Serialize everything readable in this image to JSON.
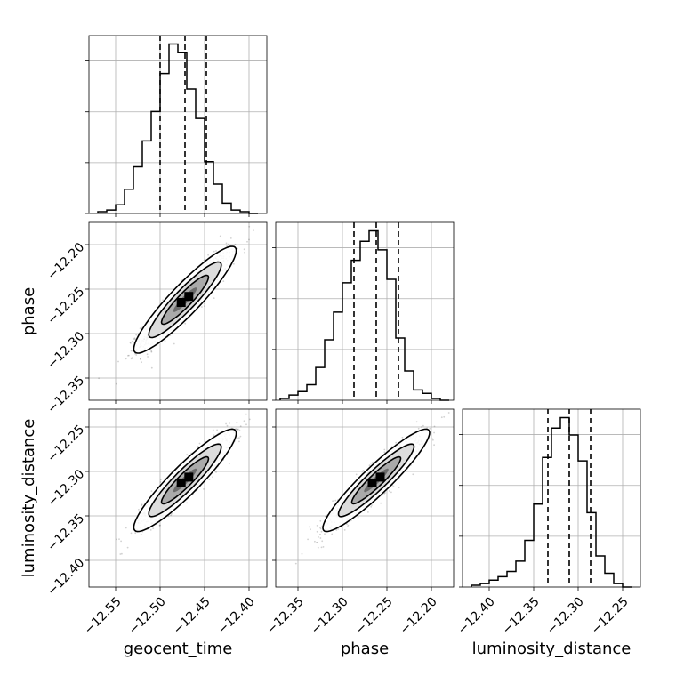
{
  "chart_data": {
    "type": "corner",
    "parameters": [
      "geocent_time",
      "phase",
      "luminosity_distance"
    ],
    "axis_labels": {
      "geocent_time": "geocent_time",
      "phase": "phase",
      "luminosity_distance": "luminosity_distance"
    },
    "ticks": {
      "geocent_time": {
        "values": [
          -12.55,
          -12.5,
          -12.45,
          -12.4
        ],
        "labels": [
          "−12.55",
          "−12.50",
          "−12.45",
          "−12.40"
        ],
        "range": [
          -12.58,
          -12.38
        ]
      },
      "phase": {
        "values": [
          -12.35,
          -12.3,
          -12.25,
          -12.2
        ],
        "labels": [
          "−12.35",
          "−12.30",
          "−12.25",
          "−12.20"
        ],
        "range": [
          -12.375,
          -12.175
        ]
      },
      "luminosity_distance": {
        "values": [
          -12.4,
          -12.35,
          -12.3,
          -12.25
        ],
        "labels": [
          "−12.40",
          "−12.35",
          "−12.30",
          "−12.25"
        ],
        "range": [
          -12.43,
          -12.23
        ]
      }
    },
    "histograms": {
      "geocent_time": {
        "bin_edges": [
          -12.57,
          -12.56,
          -12.55,
          -12.54,
          -12.53,
          -12.52,
          -12.51,
          -12.5,
          -12.49,
          -12.48,
          -12.47,
          -12.46,
          -12.45,
          -12.44,
          -12.43,
          -12.42,
          -12.41,
          -12.4,
          -12.39
        ],
        "counts": [
          0.01,
          0.02,
          0.05,
          0.14,
          0.27,
          0.42,
          0.59,
          0.81,
          0.98,
          0.93,
          0.72,
          0.55,
          0.3,
          0.17,
          0.06,
          0.02,
          0.01,
          0.0
        ],
        "quantiles": [
          -12.5,
          -12.472,
          -12.448
        ]
      },
      "phase": {
        "bin_edges": [
          -12.37,
          -12.36,
          -12.35,
          -12.34,
          -12.33,
          -12.32,
          -12.31,
          -12.3,
          -12.29,
          -12.28,
          -12.27,
          -12.26,
          -12.25,
          -12.24,
          -12.23,
          -12.22,
          -12.21,
          -12.2,
          -12.19,
          -12.18
        ],
        "counts": [
          0.01,
          0.03,
          0.05,
          0.09,
          0.19,
          0.35,
          0.51,
          0.68,
          0.81,
          0.92,
          0.98,
          0.87,
          0.7,
          0.36,
          0.17,
          0.06,
          0.04,
          0.01,
          0.0
        ],
        "quantiles": [
          -12.287,
          -12.262,
          -12.237
        ]
      },
      "luminosity_distance": {
        "bin_edges": [
          -12.42,
          -12.41,
          -12.4,
          -12.39,
          -12.38,
          -12.37,
          -12.36,
          -12.35,
          -12.34,
          -12.33,
          -12.32,
          -12.31,
          -12.3,
          -12.29,
          -12.28,
          -12.27,
          -12.26,
          -12.25,
          -12.24
        ],
        "counts": [
          0.01,
          0.02,
          0.04,
          0.06,
          0.09,
          0.15,
          0.27,
          0.48,
          0.75,
          0.92,
          0.98,
          0.88,
          0.73,
          0.43,
          0.18,
          0.08,
          0.02,
          0.0
        ],
        "quantiles": [
          -12.334,
          -12.31,
          -12.286
        ]
      }
    },
    "pairs": [
      {
        "x": "geocent_time",
        "y": "phase",
        "center": [
          -12.472,
          -12.262
        ],
        "sd": [
          0.024,
          0.025
        ],
        "corr": 0.92
      },
      {
        "x": "geocent_time",
        "y": "luminosity_distance",
        "center": [
          -12.472,
          -12.31
        ],
        "sd": [
          0.024,
          0.024
        ],
        "corr": 0.92
      },
      {
        "x": "phase",
        "y": "luminosity_distance",
        "center": [
          -12.262,
          -12.31
        ],
        "sd": [
          0.025,
          0.024
        ],
        "corr": 0.93
      }
    ],
    "grid": true
  }
}
